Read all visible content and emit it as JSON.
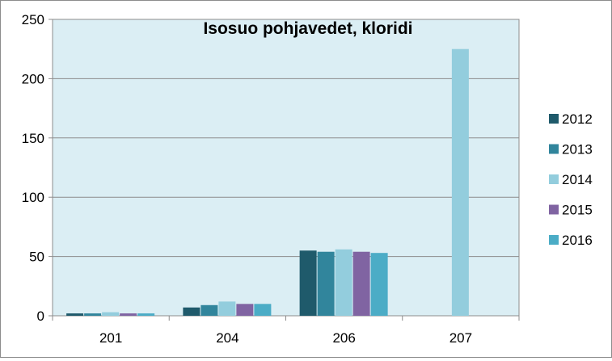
{
  "chart_data": {
    "type": "bar",
    "title": "Isosuo pohjavedet, kloridi",
    "categories": [
      "201",
      "204",
      "206",
      "207"
    ],
    "ylim": [
      0,
      250
    ],
    "yticks": [
      0,
      50,
      100,
      150,
      200,
      250
    ],
    "grid": true,
    "legend_position": "right",
    "plot_background": "#dbeef4",
    "series": [
      {
        "name": "2012",
        "color": "#1f5a6b",
        "values": [
          2,
          7,
          55,
          null
        ]
      },
      {
        "name": "2013",
        "color": "#31859c",
        "values": [
          2,
          9,
          54,
          null
        ]
      },
      {
        "name": "2014",
        "color": "#93cddd",
        "values": [
          3,
          12,
          56,
          225
        ]
      },
      {
        "name": "2015",
        "color": "#8064a2",
        "values": [
          2,
          10,
          54,
          null
        ]
      },
      {
        "name": "2016",
        "color": "#4bacc6",
        "values": [
          2,
          10,
          53,
          null
        ]
      }
    ]
  }
}
